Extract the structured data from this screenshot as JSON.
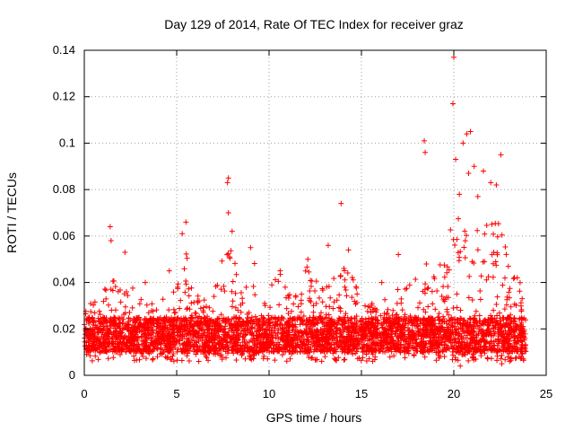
{
  "chart_data": {
    "type": "scatter",
    "title": "Day 129 of 2014, Rate Of TEC Index for receiver graz",
    "xlabel": "GPS time / hours",
    "ylabel": "ROTI / TECUs",
    "xlim": [
      0,
      25
    ],
    "ylim": [
      0,
      0.14
    ],
    "x_ticks": [
      0,
      5,
      10,
      15,
      20,
      25
    ],
    "x_tick_labels": [
      "0",
      "5",
      "10",
      "15",
      "20",
      "25"
    ],
    "y_ticks": [
      0,
      0.02,
      0.04,
      0.06,
      0.08,
      0.1,
      0.12,
      0.14
    ],
    "y_tick_labels": [
      "0",
      "0.02",
      "0.04",
      "0.06",
      "0.08",
      "0.1",
      "0.12",
      "0.14"
    ],
    "grid": true,
    "marker": "+",
    "color": "#ff0000",
    "data_range_hours": [
      0,
      23.9
    ],
    "baseline_band": [
      0.01,
      0.025
    ],
    "notable_points": [
      {
        "x": 20.0,
        "y": 0.137
      },
      {
        "x": 19.95,
        "y": 0.117
      },
      {
        "x": 20.9,
        "y": 0.105
      },
      {
        "x": 20.7,
        "y": 0.104
      },
      {
        "x": 18.4,
        "y": 0.101
      },
      {
        "x": 20.5,
        "y": 0.1
      },
      {
        "x": 18.45,
        "y": 0.096
      },
      {
        "x": 22.55,
        "y": 0.095
      },
      {
        "x": 20.1,
        "y": 0.093
      },
      {
        "x": 21.1,
        "y": 0.09
      },
      {
        "x": 21.6,
        "y": 0.088
      },
      {
        "x": 20.8,
        "y": 0.087
      },
      {
        "x": 7.8,
        "y": 0.085
      },
      {
        "x": 7.75,
        "y": 0.083
      },
      {
        "x": 22.0,
        "y": 0.083
      },
      {
        "x": 22.3,
        "y": 0.082
      },
      {
        "x": 20.3,
        "y": 0.078
      },
      {
        "x": 21.3,
        "y": 0.077
      },
      {
        "x": 13.9,
        "y": 0.074
      },
      {
        "x": 7.8,
        "y": 0.07
      },
      {
        "x": 5.5,
        "y": 0.066
      },
      {
        "x": 1.4,
        "y": 0.064
      },
      {
        "x": 8.0,
        "y": 0.062
      },
      {
        "x": 5.3,
        "y": 0.061
      },
      {
        "x": 1.45,
        "y": 0.058
      },
      {
        "x": 13.2,
        "y": 0.056
      },
      {
        "x": 9.0,
        "y": 0.055
      },
      {
        "x": 2.2,
        "y": 0.053
      },
      {
        "x": 17.0,
        "y": 0.052
      },
      {
        "x": 14.3,
        "y": 0.054
      },
      {
        "x": 12.1,
        "y": 0.05
      },
      {
        "x": 4.6,
        "y": 0.045
      },
      {
        "x": 10.6,
        "y": 0.045
      },
      {
        "x": 3.3,
        "y": 0.04
      },
      {
        "x": 16.1,
        "y": 0.04
      },
      {
        "x": 23.7,
        "y": 0.033
      },
      {
        "x": 20.35,
        "y": 0.004
      },
      {
        "x": 22.6,
        "y": 0.005
      }
    ],
    "activity_profile": [
      {
        "x": 0,
        "peak": 0.03
      },
      {
        "x": 1,
        "peak": 0.034
      },
      {
        "x": 1.4,
        "peak": 0.046
      },
      {
        "x": 2,
        "peak": 0.036
      },
      {
        "x": 2.2,
        "peak": 0.044
      },
      {
        "x": 3,
        "peak": 0.032
      },
      {
        "x": 3.3,
        "peak": 0.04
      },
      {
        "x": 4,
        "peak": 0.028
      },
      {
        "x": 4.6,
        "peak": 0.045
      },
      {
        "x": 5,
        "peak": 0.036
      },
      {
        "x": 5.4,
        "peak": 0.058
      },
      {
        "x": 6,
        "peak": 0.042
      },
      {
        "x": 7,
        "peak": 0.036
      },
      {
        "x": 7.8,
        "peak": 0.062
      },
      {
        "x": 8.5,
        "peak": 0.042
      },
      {
        "x": 9,
        "peak": 0.052
      },
      {
        "x": 10,
        "peak": 0.038
      },
      {
        "x": 10.6,
        "peak": 0.045
      },
      {
        "x": 11,
        "peak": 0.036
      },
      {
        "x": 12,
        "peak": 0.048
      },
      {
        "x": 13,
        "peak": 0.04
      },
      {
        "x": 13.9,
        "peak": 0.05
      },
      {
        "x": 14.3,
        "peak": 0.052
      },
      {
        "x": 15,
        "peak": 0.036
      },
      {
        "x": 16,
        "peak": 0.03
      },
      {
        "x": 17,
        "peak": 0.04
      },
      {
        "x": 18,
        "peak": 0.045
      },
      {
        "x": 18.5,
        "peak": 0.05
      },
      {
        "x": 19,
        "peak": 0.048
      },
      {
        "x": 19.5,
        "peak": 0.05
      },
      {
        "x": 20,
        "peak": 0.07
      },
      {
        "x": 20.5,
        "peak": 0.068
      },
      {
        "x": 21,
        "peak": 0.075
      },
      {
        "x": 21.5,
        "peak": 0.065
      },
      {
        "x": 22,
        "peak": 0.07
      },
      {
        "x": 22.5,
        "peak": 0.07
      },
      {
        "x": 23,
        "peak": 0.05
      },
      {
        "x": 23.9,
        "peak": 0.035
      }
    ]
  }
}
